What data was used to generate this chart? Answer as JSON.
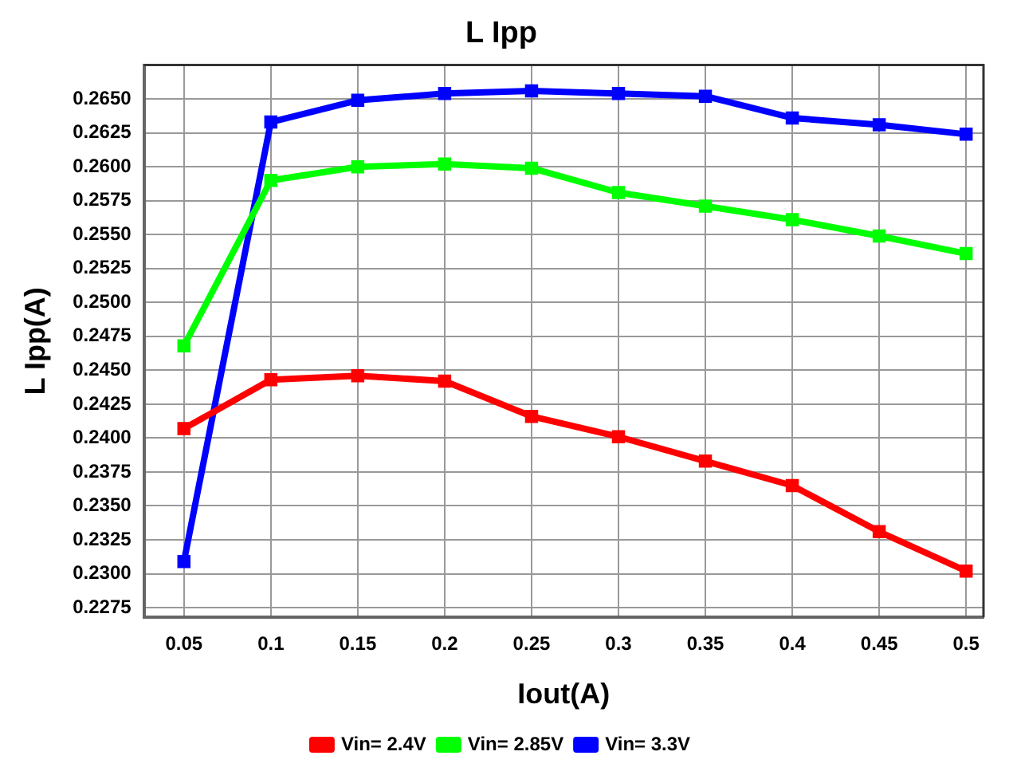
{
  "chart_data": {
    "type": "line",
    "title": "L Ipp",
    "xlabel": "Iout(A)",
    "ylabel": "L Ipp(A)",
    "x": [
      0.05,
      0.1,
      0.15,
      0.2,
      0.25,
      0.3,
      0.35,
      0.4,
      0.45,
      0.5
    ],
    "series": [
      {
        "name": "Vin= 2.4V",
        "color": "#ff0000",
        "values": [
          0.2407,
          0.2443,
          0.2446,
          0.2442,
          0.2416,
          0.2401,
          0.2383,
          0.2365,
          0.2331,
          0.2302
        ]
      },
      {
        "name": "Vin= 2.85V",
        "color": "#00ff00",
        "values": [
          0.2468,
          0.259,
          0.26,
          0.2602,
          0.2599,
          0.2581,
          0.2571,
          0.2561,
          0.2549,
          0.2536
        ]
      },
      {
        "name": "Vin= 3.3V",
        "color": "#0000ff",
        "values": [
          0.2309,
          0.2633,
          0.2649,
          0.2654,
          0.2656,
          0.2654,
          0.2652,
          0.2636,
          0.2631,
          0.2624
        ]
      }
    ],
    "xlim": [
      0.027,
      0.51
    ],
    "ylim": [
      0.2268,
      0.2675
    ],
    "xticks": [
      0.05,
      0.1,
      0.15,
      0.2,
      0.25,
      0.3,
      0.35,
      0.4,
      0.45,
      0.5
    ],
    "yticks": [
      {
        "value": 0.2275,
        "label": "0.2275"
      },
      {
        "value": 0.23,
        "label": "0.2300"
      },
      {
        "value": 0.2325,
        "label": "0.2325"
      },
      {
        "value": 0.235,
        "label": "0.2350"
      },
      {
        "value": 0.2375,
        "label": "0.2375"
      },
      {
        "value": 0.24,
        "label": "0.2400"
      },
      {
        "value": 0.2425,
        "label": "0.2425"
      },
      {
        "value": 0.245,
        "label": "0.2450"
      },
      {
        "value": 0.2475,
        "label": "0.2475"
      },
      {
        "value": 0.25,
        "label": "0.2500"
      },
      {
        "value": 0.2525,
        "label": "0.2525"
      },
      {
        "value": 0.255,
        "label": "0.2550"
      },
      {
        "value": 0.2575,
        "label": "0.2575"
      },
      {
        "value": 0.26,
        "label": "0.2600"
      },
      {
        "value": 0.2625,
        "label": "0.2625"
      },
      {
        "value": 0.265,
        "label": "0.2650"
      }
    ],
    "grid": true,
    "legend": "bottom",
    "marker": "square",
    "line_style": "solid"
  }
}
